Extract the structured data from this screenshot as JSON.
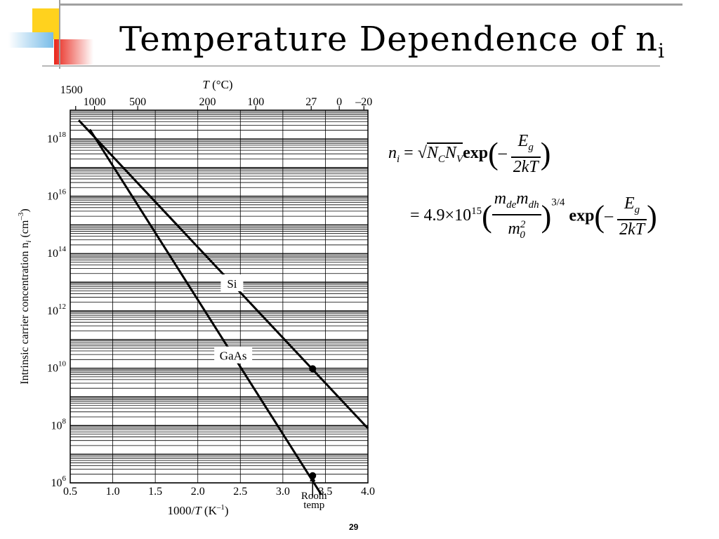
{
  "slide": {
    "title_main": "Temperature Dependence of n",
    "title_sub": "i",
    "page_number": "29"
  },
  "theme": {
    "accent_yellow": "#ffd21e",
    "accent_red": "#e8251a",
    "accent_blue": "#78bce8",
    "rule_gray": "#a0a0a0"
  },
  "equation": {
    "line1_lhs": "n",
    "line1_lhs_sub": "i",
    "line1_rhs_pre": "= ",
    "line1_sqrt": "N",
    "line1_sqrt_sub1": "C",
    "line1_sqrt_2": "N",
    "line1_sqrt_sub2": "V",
    "exp_word": "exp",
    "minus": "–",
    "eg_num": "E",
    "eg_num_sub": "g",
    "eg_den": "2kT",
    "line2_pre": "= 4.9×10",
    "line2_pre_sup": "15",
    "mass_num_1": "m",
    "mass_num_sub1": "de",
    "mass_num_2": "m",
    "mass_num_sub2": "dh",
    "mass_den": "m",
    "mass_den_sub": "0",
    "mass_den_sup": "2",
    "power": "3/4"
  },
  "chart_data": {
    "type": "line",
    "x_axis": {
      "label_prefix": "1000/",
      "label_var": "T",
      "label_suffix": " (K",
      "label_suffix_sup": "–1",
      "label_end": ")",
      "range": [
        0.5,
        4.0
      ],
      "ticks": [
        0.5,
        1.0,
        1.5,
        2.0,
        2.5,
        3.0,
        3.5,
        4.0
      ],
      "tick_labels": [
        "0.5",
        "1.0",
        "1.5",
        "2.0",
        "2.5",
        "3.0",
        "3.5",
        "4.0"
      ]
    },
    "top_axis": {
      "label_var": "T",
      "label_unit": " (°C)",
      "ticks_celsius": [
        1500,
        1000,
        500,
        200,
        100,
        27,
        0,
        -20
      ],
      "tick_labels": [
        "1500",
        "1000",
        "500",
        "200",
        "100",
        "27",
        "0",
        "–20"
      ]
    },
    "y_axis": {
      "label": "Intrinsic carrier concentration n",
      "label_sub": "i",
      "label_unit": " (cm",
      "label_unit_sup": "–3",
      "label_end": ")",
      "scale": "log",
      "range_exponent": [
        6,
        19
      ],
      "ticks_exponent": [
        6,
        8,
        10,
        12,
        14,
        16,
        18
      ],
      "tick_base": "10"
    },
    "grid": true,
    "series": [
      {
        "name": "Si",
        "x": [
          0.6,
          4.0
        ],
        "y_exponent": [
          18.65,
          7.9
        ],
        "marker": {
          "x": 3.35,
          "y_exponent": 9.98
        }
      },
      {
        "name": "GaAs",
        "x": [
          0.73,
          3.45
        ],
        "y_exponent": [
          18.33,
          5.6
        ],
        "marker": {
          "x": 3.35,
          "y_exponent": 6.25
        }
      }
    ],
    "annotation": {
      "line1": "Room",
      "line2": "temp",
      "x": 3.35
    }
  }
}
